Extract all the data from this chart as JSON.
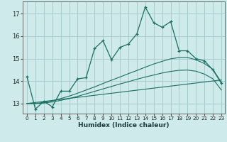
{
  "xlabel": "Humidex (Indice chaleur)",
  "background_color": "#ceeaea",
  "grid_color": "#aacccc",
  "line_color": "#1a7060",
  "xlim": [
    -0.5,
    23.4
  ],
  "ylim": [
    12.55,
    17.55
  ],
  "yticks": [
    13,
    14,
    15,
    16,
    17
  ],
  "xticks": [
    0,
    1,
    2,
    3,
    4,
    5,
    6,
    7,
    8,
    9,
    10,
    11,
    12,
    13,
    14,
    15,
    16,
    17,
    18,
    19,
    20,
    21,
    22,
    23
  ],
  "line1_x": [
    0,
    1,
    2,
    3,
    4,
    5,
    6,
    7,
    8,
    9,
    10,
    11,
    12,
    13,
    14,
    15,
    16,
    17,
    18,
    19,
    20,
    21,
    22,
    23
  ],
  "line1_y": [
    14.2,
    12.75,
    13.1,
    12.85,
    13.55,
    13.55,
    14.1,
    14.15,
    15.45,
    15.8,
    14.95,
    15.5,
    15.65,
    16.1,
    17.3,
    16.6,
    16.4,
    16.65,
    15.35,
    15.35,
    15.0,
    14.9,
    14.5,
    13.9
  ],
  "line2_x": [
    0,
    1,
    2,
    3,
    4,
    5,
    6,
    7,
    8,
    9,
    10,
    11,
    12,
    13,
    14,
    15,
    16,
    17,
    18,
    19,
    20,
    21,
    22,
    23
  ],
  "line2_y": [
    13.0,
    13.0,
    13.05,
    13.12,
    13.22,
    13.33,
    13.46,
    13.6,
    13.74,
    13.89,
    14.04,
    14.18,
    14.33,
    14.47,
    14.62,
    14.76,
    14.88,
    14.99,
    15.05,
    15.05,
    14.95,
    14.78,
    14.52,
    13.95
  ],
  "line3_x": [
    0,
    1,
    2,
    3,
    4,
    5,
    6,
    7,
    8,
    9,
    10,
    11,
    12,
    13,
    14,
    15,
    16,
    17,
    18,
    19,
    20,
    21,
    22,
    23
  ],
  "line3_y": [
    13.0,
    13.0,
    13.02,
    13.07,
    13.14,
    13.22,
    13.32,
    13.43,
    13.54,
    13.65,
    13.76,
    13.87,
    13.97,
    14.08,
    14.18,
    14.27,
    14.36,
    14.43,
    14.48,
    14.49,
    14.44,
    14.31,
    14.1,
    13.6
  ],
  "line4_x": [
    0,
    23
  ],
  "line4_y": [
    13.0,
    14.05
  ]
}
